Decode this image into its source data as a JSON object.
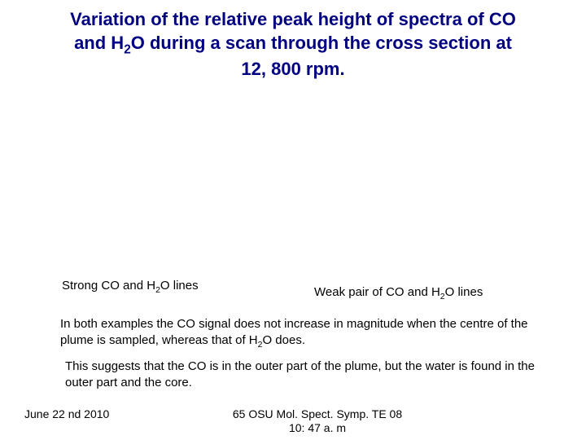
{
  "title": {
    "line1": "Variation of the relative peak height of spectra of CO",
    "line2_prefix": "and H",
    "line2_sub": "2",
    "line2_suffix": "O during a scan through the cross section at",
    "line3": "12, 800 rpm.",
    "color": "#000080",
    "fontsize": 22,
    "fontweight": "bold"
  },
  "caption_left": {
    "prefix": "Strong CO and H",
    "sub": "2",
    "suffix": "O lines",
    "fontsize": 15
  },
  "caption_right": {
    "prefix": "Weak pair of CO and H",
    "sub": "2",
    "suffix": "O lines",
    "fontsize": 15
  },
  "para1": {
    "prefix": "In both examples the CO signal does not increase in magnitude when the centre of the plume is sampled, whereas that of H",
    "sub": "2",
    "suffix": "O does.",
    "fontsize": 15
  },
  "para2": {
    "text": "This suggests that the CO is in the outer part of the plume, but the water is found in the outer part and the core.",
    "fontsize": 15
  },
  "footer_left": {
    "text": "June 22 nd 2010",
    "fontsize": 14
  },
  "footer_center": {
    "line1": "65 OSU Mol. Spect. Symp. TE 08",
    "line2": "10: 47 a. m",
    "fontsize": 14
  },
  "colors": {
    "background": "#ffffff",
    "text": "#000000"
  }
}
